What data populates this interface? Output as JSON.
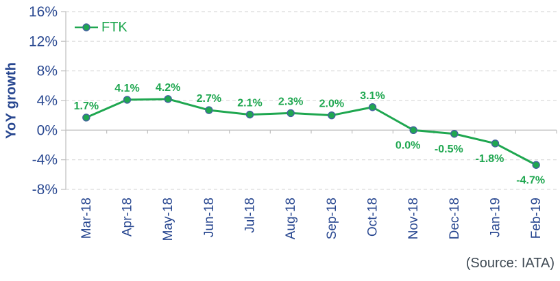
{
  "chart_data": {
    "type": "line",
    "title": "",
    "xlabel": "",
    "ylabel": "YoY growth",
    "categories": [
      "Mar-18",
      "Apr-18",
      "May-18",
      "Jun-18",
      "Jul-18",
      "Aug-18",
      "Sep-18",
      "Oct-18",
      "Nov-18",
      "Dec-18",
      "Jan-19",
      "Feb-19"
    ],
    "series": [
      {
        "name": "FTK",
        "values": [
          1.7,
          4.1,
          4.2,
          2.7,
          2.1,
          2.3,
          2.0,
          3.1,
          0.0,
          -0.5,
          -1.8,
          -4.7
        ]
      }
    ],
    "data_labels": [
      "1.7%",
      "4.1%",
      "4.2%",
      "2.7%",
      "2.1%",
      "2.3%",
      "2.0%",
      "3.1%",
      "0.0%",
      "-0.5%",
      "-1.8%",
      "-4.7%"
    ],
    "ylim": [
      -8,
      16
    ],
    "y_ticks": [
      16,
      12,
      8,
      4,
      0,
      -4,
      -8
    ],
    "y_tick_labels": [
      "16%",
      "12%",
      "8%",
      "4%",
      "0%",
      "-4%",
      "-8%"
    ],
    "grid": "horizontal-dashed",
    "legend_position": "top-left-inside"
  },
  "colors": {
    "series_green": "#1FA750",
    "marker_border": "#44639E",
    "axis_text_navy": "#284790",
    "gridline": "#D9D9D9",
    "axis_line": "#BFBFBF",
    "source_text": "#3F4A54"
  },
  "source_note": "(Source: IATA)"
}
